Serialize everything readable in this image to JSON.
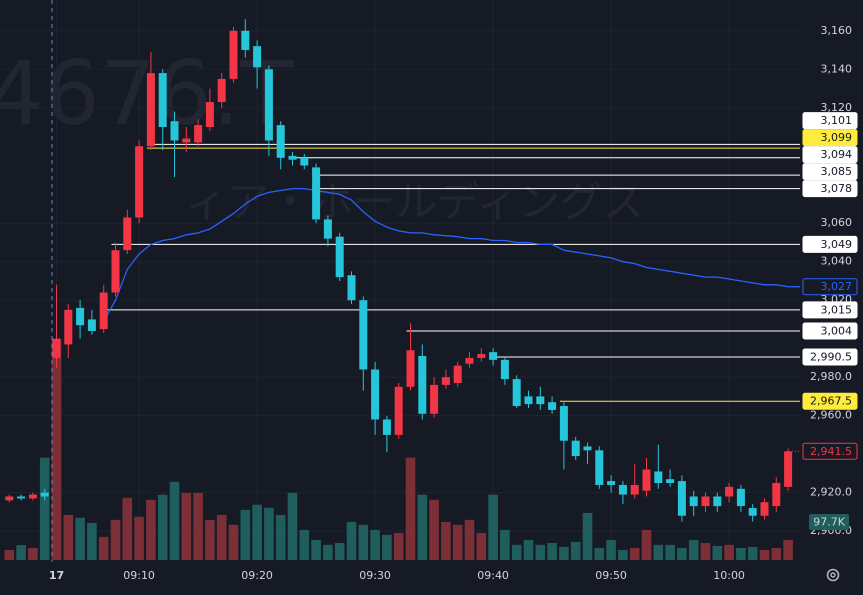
{
  "chart_data": {
    "type": "candlestick",
    "watermark": "4676.T",
    "watermark_name": "ィア・ホールディングス",
    "categories": [
      null,
      null,
      null,
      null,
      "17",
      null,
      null,
      null,
      null,
      null,
      null,
      "09:10",
      null,
      null,
      null,
      null,
      null,
      null,
      null,
      null,
      null,
      "09:20",
      null,
      null,
      null,
      null,
      null,
      null,
      null,
      null,
      null,
      "09:30",
      null,
      null,
      null,
      null,
      null,
      null,
      null,
      null,
      null,
      "09:40",
      null,
      null,
      null,
      null,
      null,
      null,
      null,
      null,
      null,
      "09:50",
      null,
      null,
      null,
      null,
      null,
      null,
      null,
      null,
      null,
      "10:00",
      null,
      null,
      null,
      null,
      null
    ],
    "open": [
      2916,
      2918,
      2917,
      2920,
      2990,
      2997,
      3016,
      3010,
      3005,
      3024,
      3046,
      3063,
      3100,
      3138,
      3113,
      3102,
      3102,
      3110,
      3123,
      3135,
      3160,
      3152,
      3140,
      3111,
      3095,
      3094,
      3089,
      3062,
      3053,
      3033,
      3020,
      2984,
      2958,
      2950,
      2975,
      2991,
      2961,
      2976,
      2977,
      2987,
      2990,
      2993,
      2989,
      2979,
      2970,
      2970,
      2967,
      2965,
      2947,
      2944,
      2942,
      2926,
      2924,
      2919,
      2921,
      2931,
      2927,
      2926,
      2918,
      2913,
      2918,
      2918,
      2922,
      2912,
      2908,
      2913,
      2923
    ],
    "high": [
      2919,
      2919,
      2920,
      2922,
      3028,
      3018,
      3020,
      3015,
      3028,
      3050,
      3067,
      3103,
      3149,
      3140,
      3118,
      3110,
      3114,
      3130,
      3138,
      3162,
      3166,
      3155,
      3142,
      3113,
      3097,
      3096,
      3091,
      3064,
      3055,
      3035,
      3022,
      2988,
      2960,
      2977,
      3008,
      2997,
      2980,
      2984,
      2988,
      2993,
      2995,
      2995,
      2990,
      2981,
      2973,
      2975,
      2970,
      2967,
      2949,
      2946,
      2944,
      2929,
      2926,
      2935,
      2938,
      2945,
      2932,
      2929,
      2921,
      2920,
      2920,
      2925,
      2924,
      2914,
      2917,
      2928,
      2943
    ],
    "low": [
      2915,
      2916,
      2916,
      2916,
      2985,
      2990,
      3000,
      3002,
      3003,
      3022,
      3044,
      3060,
      3098,
      3098,
      3084,
      3097,
      3100,
      3108,
      3120,
      3133,
      3146,
      3130,
      3095,
      3088,
      3090,
      3088,
      3060,
      3048,
      3030,
      3018,
      2973,
      2950,
      2941,
      2948,
      2973,
      2958,
      2959,
      2974,
      2975,
      2985,
      2988,
      2986,
      2976,
      2964,
      2964,
      2963,
      2961,
      2932,
      2937,
      2935,
      2922,
      2920,
      2914,
      2917,
      2918,
      2922,
      2923,
      2905,
      2908,
      2910,
      2910,
      2915,
      2910,
      2905,
      2906,
      2910,
      2921
    ],
    "close": [
      2918,
      2917,
      2919,
      2918,
      3000,
      3015,
      3007,
      3004,
      3024,
      3046,
      3063,
      3100,
      3138,
      3110,
      3103,
      3104,
      3111,
      3123,
      3135,
      3160,
      3150,
      3141,
      3103,
      3094,
      3093,
      3090,
      3062,
      3052,
      3032,
      3020,
      2984,
      2958,
      2950,
      2975,
      2994,
      2961,
      2976,
      2980,
      2986,
      2990,
      2992,
      2989,
      2979,
      2965,
      2966,
      2966,
      2963,
      2947,
      2939,
      2942,
      2924,
      2924,
      2919,
      2924,
      2932,
      2925,
      2925,
      2908,
      2913,
      2918,
      2913,
      2923,
      2913,
      2908,
      2915,
      2925,
      2941.5
    ],
    "volume": [
      49000,
      73000,
      59000,
      500000,
      1078000,
      220000,
      206000,
      181000,
      113000,
      196000,
      304000,
      211000,
      294000,
      319000,
      382000,
      328000,
      328000,
      196000,
      220000,
      172000,
      245000,
      270000,
      255000,
      220000,
      328000,
      147000,
      98000,
      74000,
      83000,
      186000,
      172000,
      147000,
      123000,
      132000,
      500000,
      319000,
      294000,
      186000,
      172000,
      196000,
      132000,
      319000,
      147000,
      74000,
      98000,
      74000,
      83000,
      64000,
      88000,
      230000,
      59000,
      98000,
      49000,
      59000,
      147000,
      74000,
      74000,
      59000,
      98000,
      83000,
      69000,
      74000,
      59000,
      64000,
      49000,
      59000,
      97700
    ],
    "volume_value_label": "97.7K",
    "vwap": [
      null,
      null,
      null,
      null,
      null,
      null,
      null,
      null,
      3009,
      3020,
      3036,
      3044,
      3049,
      3051,
      3052,
      3054,
      3055,
      3057,
      3061,
      3065,
      3070,
      3074,
      3076,
      3077,
      3078,
      3078,
      3077,
      3076,
      3075,
      3072,
      3066,
      3061,
      3058,
      3056,
      3055,
      3055,
      3054,
      3053.5,
      3053,
      3052,
      3052,
      3051,
      3051,
      3050,
      3050,
      3049,
      3049,
      3046,
      3045,
      3044,
      3043,
      3042,
      3040,
      3039,
      3037,
      3036,
      3035,
      3034,
      3033,
      3032,
      3032,
      3031,
      3030,
      3029,
      3028,
      3028,
      3027
    ],
    "vwap_color": "#2962ff",
    "vwap_label": {
      "value": 3027,
      "label": "3,027"
    },
    "up_color": "#f23645",
    "down_color": "#26c6da",
    "volume_up_color": "#7c2f36",
    "volume_down_color": "#1f5e5c",
    "ylim": [
      2885,
      3176
    ],
    "volume_lim": [
      0,
      2735000
    ],
    "yticks": [
      {
        "value": 3160,
        "label": "3,160"
      },
      {
        "value": 3140,
        "label": "3,140"
      },
      {
        "value": 3120,
        "label": "3,120"
      },
      {
        "value": 3060,
        "label": "3,060"
      },
      {
        "value": 3040,
        "label": "3,040"
      },
      {
        "value": 3020,
        "label": "3,020"
      },
      {
        "value": 2980,
        "label": "2,980.0"
      },
      {
        "value": 2960,
        "label": "2,960.0"
      },
      {
        "value": 2920,
        "label": "2,920.0"
      },
      {
        "value": 2900,
        "label": "2,900.0"
      }
    ],
    "grid": true,
    "price_lines": [
      {
        "value": 3101,
        "label": "3,101",
        "color": "#ffffff"
      },
      {
        "value": 3099,
        "label": "3,099",
        "color": "#ffeb3b"
      },
      {
        "value": 3094,
        "label": "3,094",
        "color": "#ffffff"
      },
      {
        "value": 3085,
        "label": "3,085",
        "color": "#ffffff"
      },
      {
        "value": 3078,
        "label": "3,078",
        "color": "#ffffff"
      },
      {
        "value": 3049,
        "label": "3,049",
        "color": "#ffffff"
      },
      {
        "value": 3015,
        "label": "3,015",
        "color": "#ffffff"
      },
      {
        "value": 3004,
        "label": "3,004",
        "color": "#ffffff"
      },
      {
        "value": 2990.5,
        "label": "2,990.5",
        "color": "#ffffff"
      },
      {
        "value": 2967.5,
        "label": "2,967.5",
        "color": "#ffeb3b"
      }
    ],
    "last_price": {
      "value": 2941.5,
      "label": "2,941.5"
    }
  }
}
